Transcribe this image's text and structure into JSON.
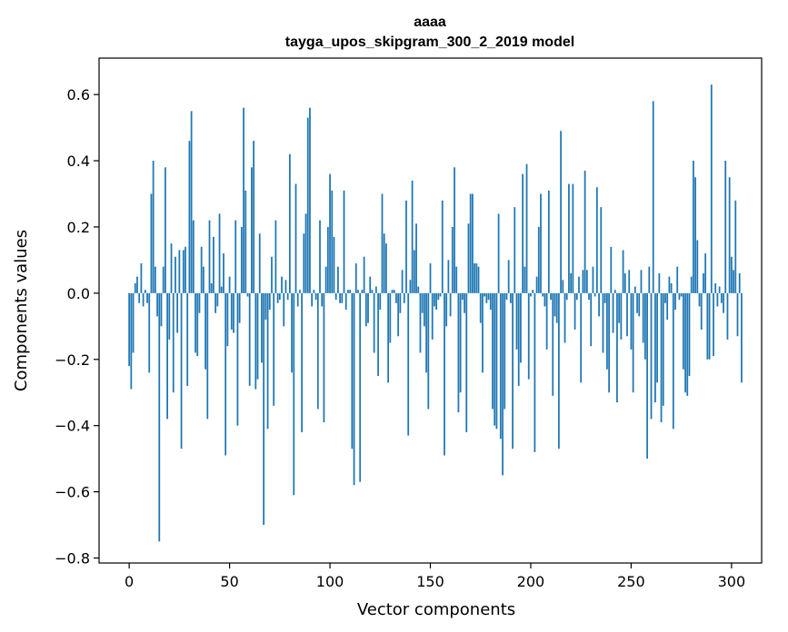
{
  "chart_data": {
    "type": "bar",
    "title": "aaaa",
    "subtitle": "tayga_upos_skipgram_300_2_2019 model",
    "xlabel": "Vector components",
    "ylabel": "Components values",
    "xlim": [
      -15,
      315
    ],
    "ylim": [
      -0.815,
      0.71
    ],
    "x_ticks": [
      0,
      50,
      100,
      150,
      200,
      250,
      300
    ],
    "x_tick_labels": [
      "0",
      "50",
      "100",
      "150",
      "200",
      "250",
      "300"
    ],
    "y_ticks": [
      0.6,
      0.4,
      0.2,
      0.0,
      -0.2,
      -0.4,
      -0.6,
      -0.8
    ],
    "y_tick_labels": [
      "0.6",
      "0.4",
      "0.2",
      "0.0",
      "−0.2",
      "−0.4",
      "−0.6",
      "−0.8"
    ],
    "bar_color": "#1f77b4",
    "series": [
      {
        "name": "components",
        "values": [
          -0.22,
          -0.29,
          -0.18,
          0.03,
          0.05,
          -0.03,
          0.09,
          -0.04,
          0.01,
          -0.03,
          -0.24,
          0.3,
          0.4,
          0.08,
          -0.07,
          -0.75,
          -0.1,
          0.08,
          0.38,
          -0.38,
          -0.14,
          0.15,
          -0.3,
          0.11,
          -0.12,
          0.13,
          -0.47,
          0.13,
          0.14,
          -0.28,
          0.46,
          0.55,
          0.22,
          -0.18,
          -0.19,
          -0.06,
          0.14,
          0.08,
          -0.23,
          -0.38,
          0.22,
          0.03,
          0.17,
          -0.06,
          -0.04,
          0.24,
          0.02,
          0.12,
          -0.49,
          -0.16,
          0.05,
          -0.11,
          -0.12,
          0.22,
          -0.4,
          -0.09,
          0.2,
          0.56,
          0.31,
          -0.01,
          -0.28,
          0.38,
          0.46,
          -0.29,
          -0.26,
          0.18,
          -0.21,
          -0.7,
          -0.08,
          -0.41,
          -0.05,
          0.11,
          -0.34,
          0.22,
          -0.03,
          -0.02,
          0.05,
          -0.1,
          0.04,
          -0.02,
          0.42,
          -0.24,
          -0.61,
          0.33,
          -0.04,
          0.01,
          -0.42,
          0.18,
          0.24,
          0.53,
          0.56,
          -0.04,
          0.01,
          -0.02,
          -0.35,
          0.22,
          -0.04,
          -0.39,
          0.08,
          0.2,
          0.36,
          0.31,
          0.17,
          -0.02,
          0.08,
          -0.03,
          -0.03,
          0.31,
          -0.05,
          0.01,
          0.01,
          -0.47,
          -0.58,
          0.09,
          0.01,
          -0.57,
          0.01,
          0.11,
          -0.1,
          -0.09,
          0.05,
          0.01,
          -0.18,
          0.02,
          -0.25,
          -0.05,
          0.3,
          0.18,
          0.15,
          -0.27,
          -0.15,
          0.01,
          0.01,
          -0.03,
          -0.13,
          -0.06,
          0.07,
          -0.03,
          0.28,
          -0.43,
          0.04,
          0.34,
          0.13,
          0.21,
          0.02,
          -0.18,
          -0.06,
          -0.1,
          -0.24,
          -0.35,
          0.09,
          -0.14,
          -0.04,
          -0.05,
          -0.02,
          -0.01,
          0.28,
          -0.49,
          -0.1,
          0.1,
          -0.07,
          0.2,
          0.38,
          0.08,
          -0.36,
          -0.3,
          -0.02,
          -0.06,
          -0.42,
          0.21,
          0.3,
          0.3,
          0.09,
          0.09,
          0.08,
          -0.09,
          -0.24,
          -0.01,
          -0.03,
          -0.02,
          -0.05,
          -0.35,
          -0.4,
          -0.41,
          0.24,
          -0.44,
          -0.55,
          -0.35,
          -0.02,
          0.1,
          -0.03,
          -0.47,
          0.26,
          -0.17,
          -0.28,
          -0.21,
          0.36,
          0.08,
          0.39,
          -0.26,
          -0.01,
          0.01,
          -0.48,
          0.05,
          0.2,
          0.3,
          -0.01,
          -0.04,
          -0.17,
          0.31,
          -0.02,
          -0.31,
          -0.07,
          -0.09,
          -0.47,
          0.49,
          0.04,
          -0.15,
          -0.02,
          0.33,
          0.06,
          0.33,
          -0.11,
          -0.02,
          0.05,
          -0.27,
          0.07,
          0.37,
          0.07,
          -0.02,
          -0.16,
          0.08,
          -0.01,
          0.32,
          -0.07,
          0.26,
          -0.18,
          -0.03,
          -0.23,
          -0.3,
          0.14,
          -0.12,
          0.01,
          -0.33,
          -0.09,
          -0.14,
          0.13,
          0.06,
          -0.13,
          0.07,
          -0.17,
          -0.3,
          0.02,
          -0.06,
          -0.07,
          0.07,
          -0.15,
          -0.2,
          -0.5,
          0.08,
          -0.38,
          0.58,
          -0.33,
          -0.27,
          0.06,
          -0.39,
          -0.34,
          -0.03,
          -0.08,
          0.05,
          0.03,
          -0.41,
          -0.05,
          0.08,
          -0.02,
          -0.01,
          -0.23,
          -0.3,
          -0.31,
          -0.25,
          0.05,
          0.4,
          0.35,
          0.16,
          -0.04,
          -0.11,
          0.06,
          0.12,
          -0.2,
          -0.2,
          0.63,
          -0.19,
          0.03,
          -0.04,
          0.02,
          -0.03,
          -0.06,
          0.4,
          -0.14,
          0.35,
          0.11,
          0.07,
          0.28,
          -0.13,
          0.06,
          -0.27
        ]
      }
    ]
  }
}
